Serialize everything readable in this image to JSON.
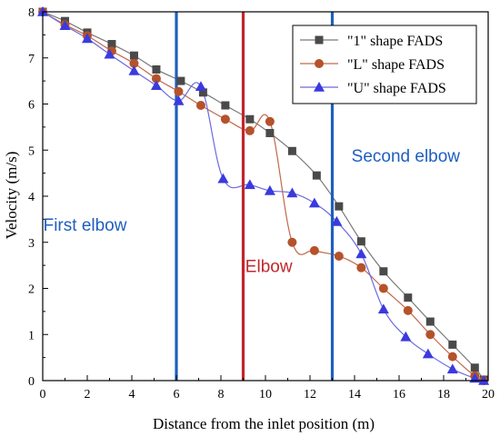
{
  "chart_data": {
    "type": "line",
    "title": "",
    "xlabel": "Distance from the inlet position (m)",
    "ylabel": "Velocity (m/s)",
    "xlim": [
      0,
      20
    ],
    "ylim": [
      0,
      8
    ],
    "xticks": [
      "0",
      "2",
      "4",
      "6",
      "8",
      "10",
      "12",
      "14",
      "16",
      "18",
      "20"
    ],
    "yticks": [
      "0",
      "1",
      "2",
      "3",
      "4",
      "5",
      "6",
      "7",
      "8"
    ],
    "grid": false,
    "legend_position": "top-right",
    "series": [
      {
        "name": "\"1\" shape FADS",
        "marker": "square",
        "color": "#4a4a4a",
        "line_color": "#7a7a7a",
        "x": [
          0,
          1.0,
          2.0,
          3.1,
          4.1,
          5.1,
          6.2,
          7.2,
          8.2,
          9.3,
          10.2,
          11.2,
          12.3,
          13.3,
          14.3,
          15.3,
          16.4,
          17.4,
          18.4,
          19.4,
          19.8
        ],
        "y": [
          8.0,
          7.8,
          7.55,
          7.3,
          7.05,
          6.75,
          6.5,
          6.25,
          5.97,
          5.67,
          5.37,
          4.98,
          4.45,
          3.78,
          3.02,
          2.37,
          1.8,
          1.28,
          0.78,
          0.28,
          0.02
        ]
      },
      {
        "name": "\"L\" shape FADS",
        "marker": "circle",
        "color": "#b5522b",
        "line_color": "#c06a4a",
        "x": [
          0,
          1.0,
          2.0,
          3.1,
          4.1,
          5.1,
          6.1,
          7.1,
          8.2,
          9.3,
          10.2,
          11.2,
          12.2,
          13.3,
          14.3,
          15.3,
          16.4,
          17.4,
          18.4,
          19.4,
          19.8
        ],
        "y": [
          8.0,
          7.72,
          7.48,
          7.15,
          6.88,
          6.55,
          6.27,
          5.97,
          5.67,
          5.42,
          5.62,
          3.0,
          2.82,
          2.7,
          2.45,
          2.0,
          1.52,
          1.0,
          0.52,
          0.1,
          0.0
        ]
      },
      {
        "name": "\"U\" shape FADS",
        "marker": "triangle",
        "color": "#3a3adf",
        "line_color": "#6a6ae0",
        "x": [
          0,
          1.0,
          2.0,
          3.0,
          4.1,
          5.1,
          6.1,
          7.1,
          8.1,
          9.3,
          10.2,
          11.2,
          12.2,
          13.2,
          14.3,
          15.3,
          16.3,
          17.3,
          18.4,
          19.4,
          19.8
        ],
        "y": [
          8.0,
          7.7,
          7.42,
          7.08,
          6.72,
          6.4,
          6.07,
          6.38,
          4.38,
          4.25,
          4.12,
          4.07,
          3.85,
          3.45,
          2.75,
          1.55,
          0.95,
          0.58,
          0.25,
          0.05,
          0.0
        ]
      }
    ],
    "vertical_markers": [
      {
        "x": 6.0,
        "color": "#1f5fbf"
      },
      {
        "x": 9.0,
        "color": "#c0272d"
      },
      {
        "x": 13.0,
        "color": "#1f5fbf"
      }
    ],
    "annotations": [
      {
        "text": "First elbow",
        "x": 1.9,
        "y": 3.25,
        "color": "#1f5fbf"
      },
      {
        "text": "Elbow",
        "x": 10.15,
        "y": 2.35,
        "color": "#c0272d"
      },
      {
        "text": "Second elbow",
        "x": 16.3,
        "y": 4.75,
        "color": "#1f5fbf"
      }
    ]
  }
}
